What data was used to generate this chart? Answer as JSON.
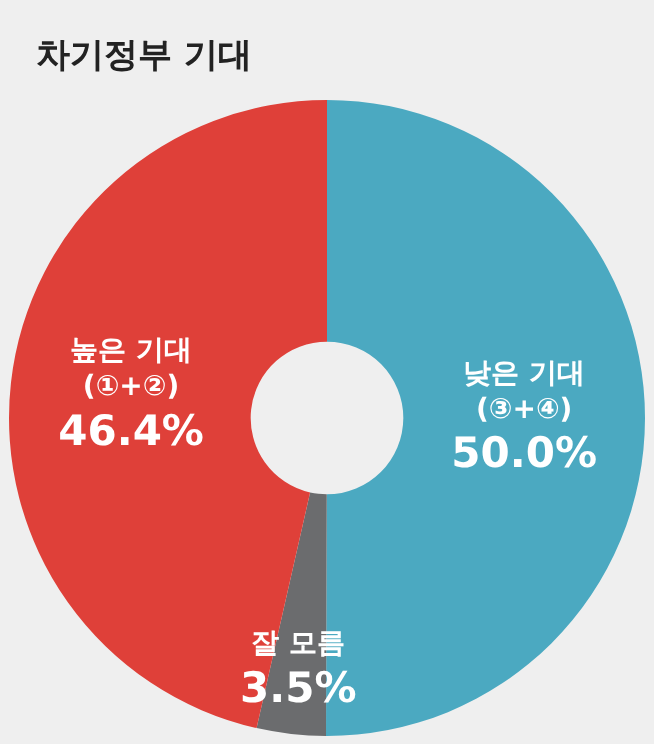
{
  "chart_data": {
    "type": "donut",
    "title": "차기정부 기대",
    "categories": [
      "낮은 기대 (③+④)",
      "잘 모름",
      "높은 기대 (①+②)"
    ],
    "values": [
      50.0,
      3.5,
      46.4
    ],
    "colors": [
      "#4ba9c1",
      "#6b6c6e",
      "#df4039"
    ],
    "value_labels": [
      "50.0%",
      "3.5%",
      "46.4%"
    ],
    "legend": false
  }
}
